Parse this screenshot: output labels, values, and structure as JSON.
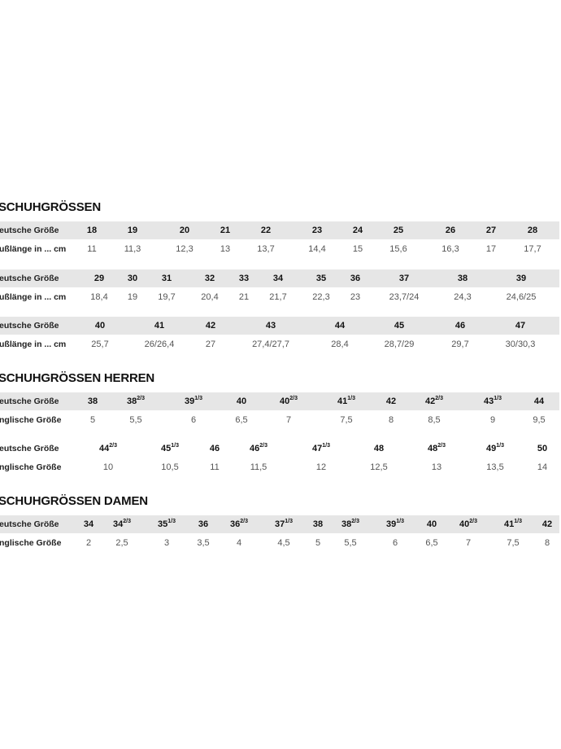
{
  "sections": [
    {
      "title": "SCHUHGRÖSSEN",
      "blocks": [
        {
          "label_top": "eutsche Größe",
          "label_bottom": "ußlänge in ... cm",
          "top": [
            "18",
            "19",
            "20",
            "21",
            "22",
            "23",
            "24",
            "25",
            "26",
            "27",
            "28"
          ],
          "bottom": [
            "11",
            "11,3",
            "12,3",
            "13",
            "13,7",
            "14,4",
            "15",
            "15,6",
            "16,3",
            "17",
            "17,7"
          ]
        },
        {
          "label_top": "eutsche Größe",
          "label_bottom": "ußlänge in ... cm",
          "top": [
            "29",
            "30",
            "31",
            "32",
            "33",
            "34",
            "35",
            "36",
            "37",
            "38",
            "39"
          ],
          "bottom": [
            "18,4",
            "19",
            "19,7",
            "20,4",
            "21",
            "21,7",
            "22,3",
            "23",
            "23,7/24",
            "24,3",
            "24,6/25"
          ]
        },
        {
          "label_top": "eutsche Größe",
          "label_bottom": "ußlänge in ... cm",
          "top": [
            "40",
            "41",
            "42",
            "43",
            "44",
            "45",
            "46",
            "47"
          ],
          "bottom": [
            "25,7",
            "26/26,4",
            "27",
            "27,4/27,7",
            "28,4",
            "28,7/29",
            "29,7",
            "30/30,3"
          ]
        }
      ]
    },
    {
      "title": "SCHUHGRÖSSEN HERREN",
      "blocks": [
        {
          "label_top": "eutsche Größe",
          "label_bottom": "nglische Größe",
          "top": [
            "38",
            "38|2/3",
            "39|1/3",
            "40",
            "40|2/3",
            "41|1/3",
            "42",
            "42|2/3",
            "43|1/3",
            "44"
          ],
          "bottom": [
            "5",
            "5,5",
            "6",
            "6,5",
            "7",
            "7,5",
            "8",
            "8,5",
            "9",
            "9,5"
          ]
        },
        {
          "label_top": "eutsche Größe",
          "label_bottom": "nglische Größe",
          "nogray": true,
          "top": [
            "44|2/3",
            "45|1/3",
            "46",
            "46|2/3",
            "47|1/3",
            "48",
            "48|2/3",
            "49|1/3",
            "50"
          ],
          "bottom": [
            "10",
            "10,5",
            "11",
            "11,5",
            "12",
            "12,5",
            "13",
            "13,5",
            "14"
          ]
        }
      ]
    },
    {
      "title": "SCHUHGRÖSSEN DAMEN",
      "blocks": [
        {
          "label_top": "eutsche Größe",
          "label_bottom": "nglische Größe",
          "top": [
            "34",
            "34|2/3",
            "35|1/3",
            "36",
            "36|2/3",
            "37|1/3",
            "38",
            "38|2/3",
            "39|1/3",
            "40",
            "40|2/3",
            "41|1/3",
            "42"
          ],
          "bottom": [
            "2",
            "2,5",
            "3",
            "3,5",
            "4",
            "4,5",
            "5",
            "5,5",
            "6",
            "6,5",
            "7",
            "7,5",
            "8"
          ]
        }
      ]
    }
  ],
  "colors": {
    "band": "#e6e6e6",
    "text": "#222222"
  }
}
